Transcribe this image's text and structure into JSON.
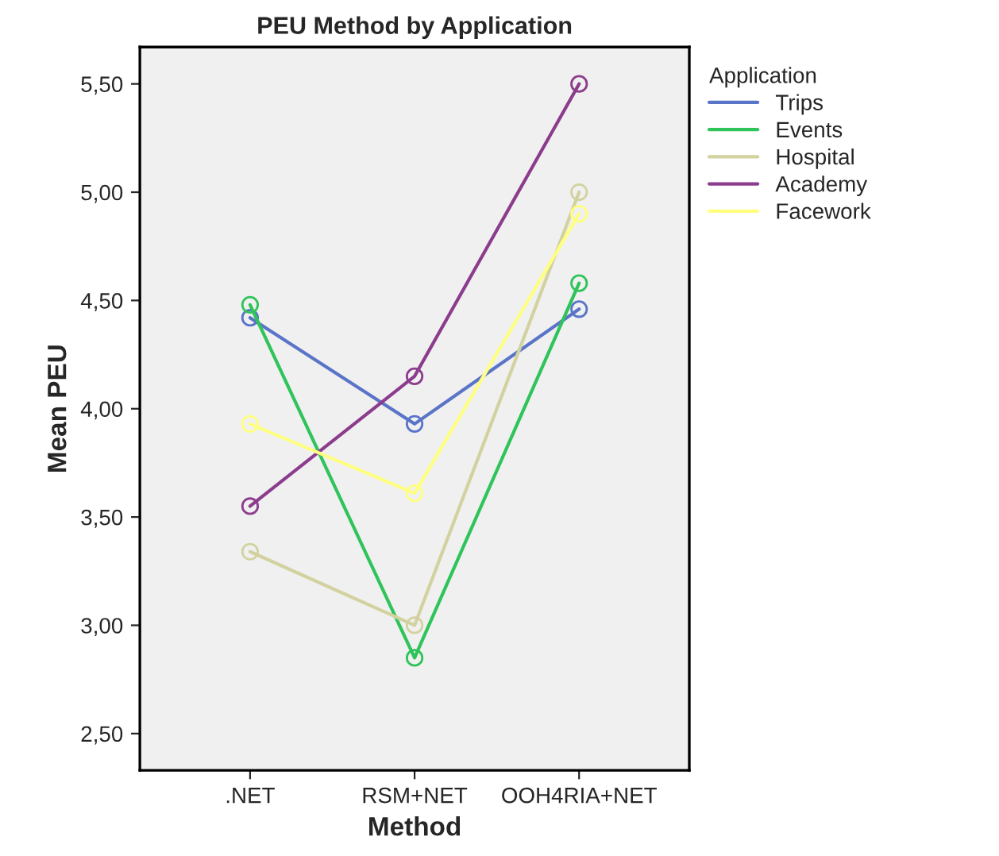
{
  "chart_data": {
    "type": "line",
    "title": "PEU Method by Application",
    "xlabel": "Method",
    "ylabel": "Mean PEU",
    "legend_title": "Application",
    "categories": [
      ".NET",
      "RSM+NET",
      "OOH4RIA+NET"
    ],
    "series": [
      {
        "name": "Trips",
        "color": "#5a74c8",
        "values": [
          4.42,
          3.93,
          4.46
        ]
      },
      {
        "name": "Events",
        "color": "#2fc45a",
        "values": [
          4.48,
          2.85,
          4.58
        ]
      },
      {
        "name": "Hospital",
        "color": "#d2d2a0",
        "values": [
          3.34,
          3.0,
          5.0
        ]
      },
      {
        "name": "Academy",
        "color": "#8c3c8c",
        "values": [
          3.55,
          4.15,
          5.5
        ]
      },
      {
        "name": "Facework",
        "color": "#ffff80",
        "values": [
          3.93,
          3.61,
          4.9
        ]
      }
    ],
    "ylim": [
      2.33,
      5.67
    ],
    "yticks": [
      {
        "value": 2.5,
        "label": "2,50"
      },
      {
        "value": 3.0,
        "label": "3,00"
      },
      {
        "value": 3.5,
        "label": "3,50"
      },
      {
        "value": 4.0,
        "label": "4,00"
      },
      {
        "value": 4.5,
        "label": "4,50"
      },
      {
        "value": 5.0,
        "label": "5,00"
      },
      {
        "value": 5.5,
        "label": "5,50"
      }
    ],
    "marker": "circle",
    "line_style": "solid",
    "legend": "top right",
    "grid": false
  }
}
